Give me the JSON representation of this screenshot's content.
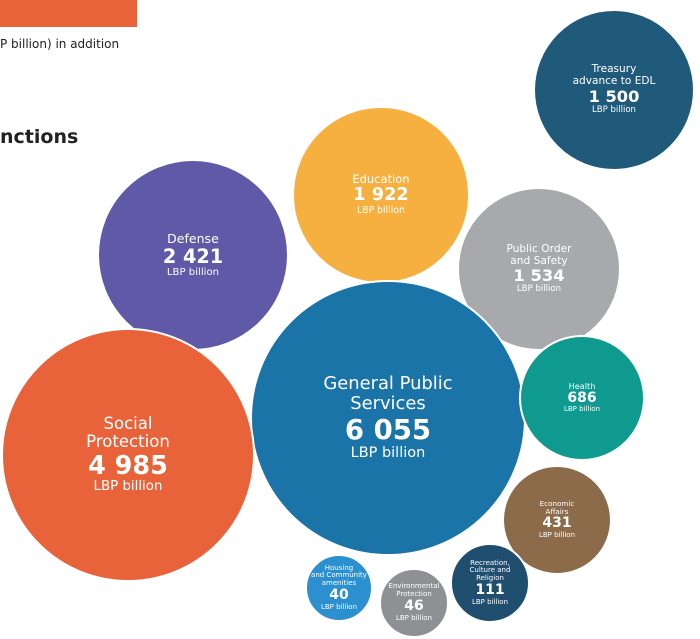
{
  "header": {
    "fragment_text": "P billion) in addition",
    "fragment_heading": "nctions"
  },
  "chart_data": {
    "type": "bubble",
    "unit": "LBP billion",
    "categories": [
      "Treasury\nadvance to EDL",
      "Education",
      "Public Order\nand Safety",
      "Defense",
      "General Public\nServices",
      "Health",
      "Social\nProtection",
      "Economic\nAffairs",
      "Recreation,\nCulture and\nReligion",
      "Environmental\nProtection",
      "Housing\nand Community\namenities"
    ],
    "values": [
      1500,
      1922,
      1534,
      2421,
      6055,
      686,
      4985,
      431,
      111,
      46,
      40
    ],
    "value_labels": [
      "1 500",
      "1 922",
      "1 534",
      "2 421",
      "6 055",
      "686",
      "4 985",
      "431",
      "111",
      "46",
      "40"
    ],
    "colors": [
      "#1f5a7a",
      "#f5b040",
      "#a7a9ac",
      "#6059a8",
      "#1a74a8",
      "#0e9a8e",
      "#e8623a",
      "#8b6b4a",
      "#1f4e6e",
      "#8e9093",
      "#2b8fd0"
    ]
  }
}
